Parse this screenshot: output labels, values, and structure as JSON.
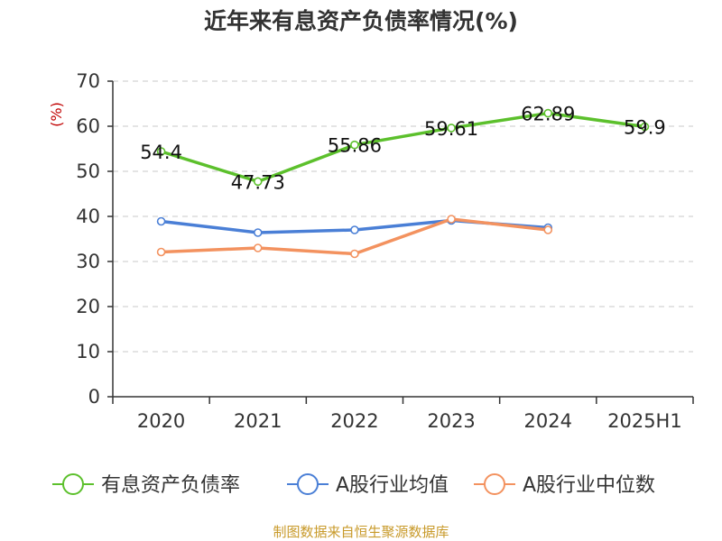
{
  "chart_data": {
    "type": "line",
    "title": "近年来有息资产负债率情况(%)",
    "ylabel": "(%)",
    "xlabel": "",
    "ylim": [
      0,
      70
    ],
    "yticks": [
      0,
      10,
      20,
      30,
      40,
      50,
      60,
      70
    ],
    "categories": [
      "2020",
      "2021",
      "2022",
      "2023",
      "2024",
      "2025H1"
    ],
    "grid": true,
    "legend_position": "bottom",
    "series": [
      {
        "name": "有息资产负债率",
        "color": "#5cc02c",
        "values": [
          54.4,
          47.73,
          55.86,
          59.61,
          62.89,
          59.9
        ],
        "labels": [
          "54.4",
          "47.73",
          "55.86",
          "59.61",
          "62.89",
          "59.9"
        ]
      },
      {
        "name": "A股行业均值",
        "color": "#4a7fd6",
        "values": [
          38.9,
          36.4,
          37.0,
          39.1,
          37.5,
          null
        ]
      },
      {
        "name": "A股行业中位数",
        "color": "#f3925f",
        "values": [
          32.1,
          33.0,
          31.7,
          39.4,
          37.0,
          null
        ]
      }
    ]
  },
  "source": "制图数据来自恒生聚源数据库"
}
